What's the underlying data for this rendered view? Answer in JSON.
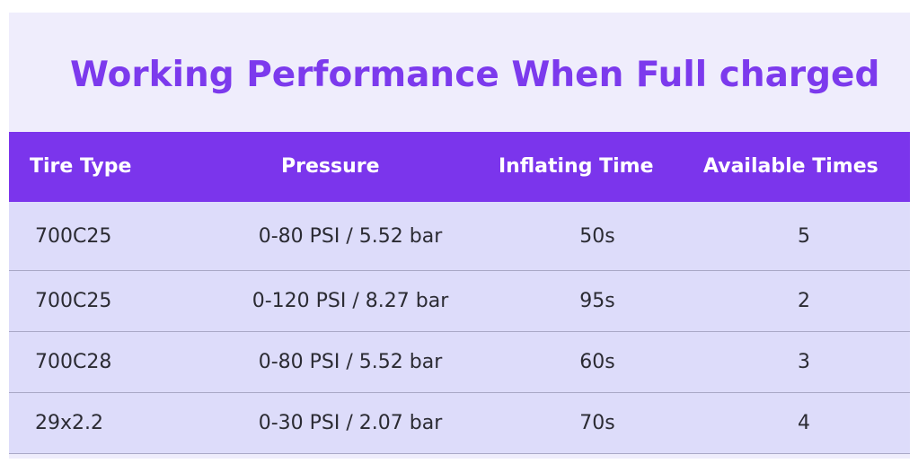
{
  "title": "Working Performance When Full charged",
  "table": {
    "headers": [
      "Tire Type",
      "Pressure",
      "Inflating Time",
      "Available Times"
    ],
    "rows": [
      [
        "700C25",
        "0-80 PSI / 5.52 bar",
        "50s",
        "5"
      ],
      [
        "700C25",
        "0-120 PSI / 8.27 bar",
        "95s",
        "2"
      ],
      [
        "700C28",
        "0-80 PSI / 5.52 bar",
        "60s",
        "3"
      ],
      [
        "29x2.2",
        "0-30 PSI / 2.07 bar",
        "70s",
        "4"
      ]
    ]
  },
  "colors": {
    "accent": "#7b35ec",
    "title": "#7c3aed",
    "card_background": "#efedfc",
    "row_background": "#dddcfa"
  }
}
